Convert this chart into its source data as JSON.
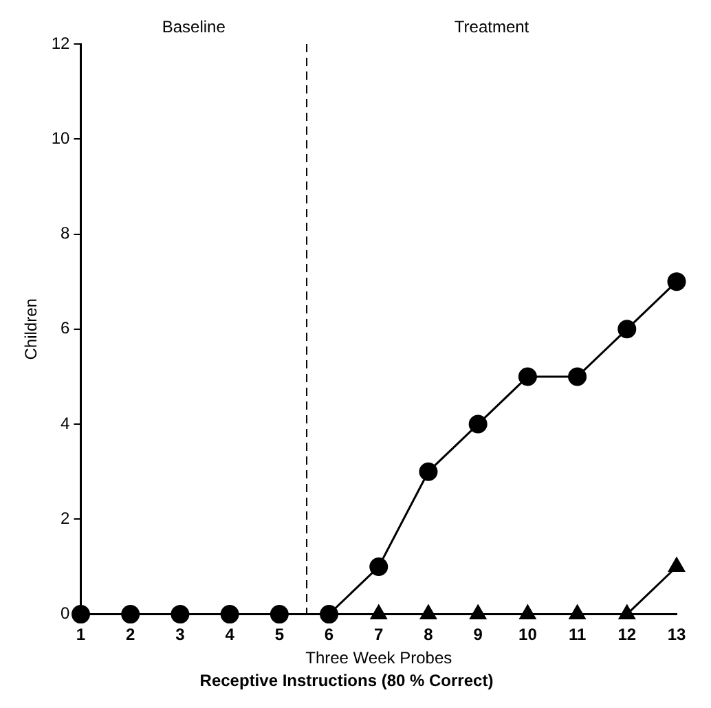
{
  "chart_data": {
    "type": "line",
    "title": "Receptive Instructions (80 % Correct)",
    "xlabel": "Three Week Probes",
    "ylabel": "Children",
    "x": [
      1,
      2,
      3,
      4,
      5,
      6,
      7,
      8,
      9,
      10,
      11,
      12,
      13
    ],
    "series": [
      {
        "color": "#000000",
        "marker": "circle",
        "values": [
          0,
          0,
          0,
          0,
          0,
          0,
          1,
          3,
          4,
          5,
          5,
          6,
          7
        ]
      },
      {
        "color": "#000000",
        "marker": "triangle",
        "values": [
          null,
          null,
          null,
          null,
          null,
          null,
          0,
          0,
          0,
          0,
          0,
          0,
          1
        ]
      }
    ],
    "xlim": [
      1,
      13
    ],
    "xticks": [
      1,
      2,
      3,
      4,
      5,
      6,
      7,
      8,
      9,
      10,
      11,
      12,
      13
    ],
    "ylim": [
      0,
      12
    ],
    "yticks": [
      0,
      2,
      4,
      6,
      8,
      10,
      12
    ],
    "grid": false,
    "legend": false,
    "line_style": "solid",
    "ref_lines": [
      {
        "axis": "x",
        "value": 5.55,
        "color": "#000000",
        "line_style": "dashed"
      }
    ],
    "annotations": [
      "Baseline",
      "Treatment"
    ]
  }
}
